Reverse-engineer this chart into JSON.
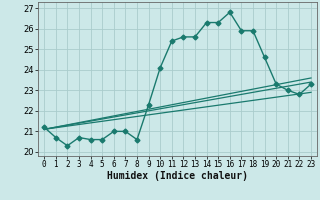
{
  "title": "",
  "xlabel": "Humidex (Indice chaleur)",
  "background_color": "#cce8e8",
  "grid_color": "#aacccc",
  "line_color": "#1a7a6e",
  "x_ticks": [
    0,
    1,
    2,
    3,
    4,
    5,
    6,
    7,
    8,
    9,
    10,
    11,
    12,
    13,
    14,
    15,
    16,
    17,
    18,
    19,
    20,
    21,
    22,
    23
  ],
  "ylim": [
    19.8,
    27.3
  ],
  "xlim": [
    -0.5,
    23.5
  ],
  "yticks": [
    20,
    21,
    22,
    23,
    24,
    25,
    26,
    27
  ],
  "series": [
    {
      "x": [
        0,
        1,
        2,
        3,
        4,
        5,
        6,
        7,
        8,
        9,
        10,
        11,
        12,
        13,
        14,
        15,
        16,
        17,
        18,
        19,
        20,
        21,
        22,
        23
      ],
      "y": [
        21.2,
        20.7,
        20.3,
        20.7,
        20.6,
        20.6,
        21.0,
        21.0,
        20.6,
        22.3,
        24.1,
        25.4,
        25.6,
        25.6,
        26.3,
        26.3,
        26.8,
        25.9,
        25.9,
        24.6,
        23.3,
        23.0,
        22.8,
        23.3
      ],
      "marker": "D",
      "markersize": 2.5,
      "linewidth": 1.0,
      "with_marker": true
    },
    {
      "x": [
        0,
        23
      ],
      "y": [
        21.1,
        23.4
      ],
      "linewidth": 0.9,
      "with_marker": false
    },
    {
      "x": [
        0,
        23
      ],
      "y": [
        21.1,
        22.9
      ],
      "linewidth": 0.9,
      "with_marker": false
    },
    {
      "x": [
        0,
        23
      ],
      "y": [
        21.1,
        23.6
      ],
      "linewidth": 0.9,
      "with_marker": false
    }
  ]
}
